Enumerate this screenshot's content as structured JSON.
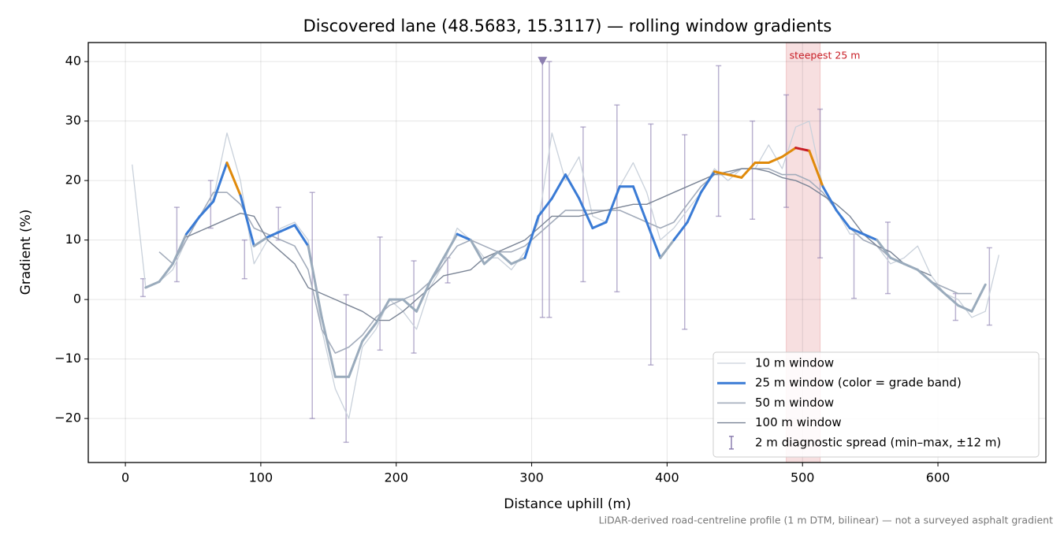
{
  "chart_data": {
    "type": "line",
    "title": "Discovered lane (48.5683, 15.3117) — rolling window gradients",
    "x_label": "Distance uphill (m)",
    "y_label": "Gradient (%)",
    "footnote": "LiDAR-derived road-centreline profile (1 m DTM, bilinear) — not a surveyed asphalt gradient",
    "xlim": [
      -27.4,
      679.7
    ],
    "ylim": [
      -27.4,
      43.2
    ],
    "xticks": [
      0,
      100,
      200,
      300,
      400,
      500,
      600
    ],
    "yticks": [
      {
        "value": -20,
        "label": "−20"
      },
      {
        "value": -10,
        "label": "−10"
      },
      0,
      10,
      20,
      30,
      40
    ],
    "grid": true,
    "legend": "lower right",
    "x": [
      5,
      15,
      25,
      35,
      45,
      55,
      65,
      75,
      85,
      95,
      105,
      115,
      125,
      135,
      145,
      155,
      165,
      175,
      185,
      195,
      205,
      215,
      225,
      235,
      245,
      255,
      265,
      275,
      285,
      295,
      305,
      315,
      325,
      335,
      345,
      355,
      365,
      375,
      385,
      395,
      405,
      415,
      425,
      435,
      445,
      455,
      465,
      475,
      485,
      495,
      505,
      515,
      525,
      535,
      545,
      555,
      565,
      575,
      585,
      595,
      605,
      615,
      625,
      635,
      645
    ],
    "series": [
      {
        "name": "10 m window",
        "color": "#c9d1db",
        "width": 1.3,
        "values": [
          22.7,
          2,
          3,
          5,
          10,
          14,
          17,
          28,
          20,
          6,
          10,
          12,
          13,
          10,
          -5,
          -15,
          -20,
          -8,
          -5,
          0,
          -2,
          -5,
          2,
          6,
          12,
          10,
          7,
          7,
          5,
          8,
          13,
          28,
          20,
          24,
          14,
          13,
          19,
          23,
          18,
          10,
          12,
          15,
          18,
          22,
          20,
          22,
          22,
          26,
          22,
          29,
          30,
          19,
          15,
          11,
          11,
          9,
          6,
          7,
          9,
          4,
          1,
          0,
          -3,
          -2,
          7.5
        ]
      },
      {
        "name": "25 m window (color = grade band)",
        "color": "#3a7bd5",
        "width": 3,
        "band_thresholds": [
          10,
          20,
          25
        ],
        "band_colors": [
          "#9aabbc",
          "#3a7bd5",
          "#e08a0b",
          "#c81d25"
        ],
        "values": [
          null,
          2,
          3,
          6,
          11,
          14,
          16.5,
          23,
          17.5,
          9,
          10.5,
          11.5,
          12.5,
          9,
          -3,
          -13,
          -13,
          -7,
          -4,
          0,
          0,
          -2,
          3,
          7,
          11,
          10,
          6,
          8,
          6,
          7,
          14,
          17,
          21,
          17,
          12,
          13,
          19,
          19,
          13,
          7,
          10,
          13,
          18,
          21.5,
          21,
          20.5,
          23,
          23,
          24,
          25.5,
          25,
          19,
          15,
          12,
          11,
          10,
          7,
          6,
          5,
          3,
          1,
          -1,
          -2,
          2.5,
          null
        ]
      },
      {
        "name": "50 m window",
        "color": "#a3acbb",
        "width": 1.6,
        "values": [
          null,
          null,
          8,
          6,
          10,
          14,
          18,
          18,
          16,
          12,
          11,
          10,
          9,
          5,
          -5,
          -9,
          -8,
          -6,
          -3,
          -1,
          0,
          1,
          3,
          6,
          9,
          10,
          9,
          8,
          8,
          9,
          11,
          13,
          15,
          15,
          15,
          15,
          15,
          14,
          13,
          12,
          13,
          16,
          19,
          21,
          21,
          22,
          22,
          22,
          21,
          21,
          20,
          18,
          15,
          12,
          10,
          9,
          7,
          6,
          5,
          3,
          2,
          1,
          1,
          null,
          null
        ]
      },
      {
        "name": "100 m window",
        "color": "#7b8596",
        "width": 1.4,
        "values": [
          null,
          null,
          null,
          null,
          10.5,
          11.5,
          12.5,
          13.5,
          14.5,
          14,
          10,
          8,
          6,
          2,
          1,
          0,
          -1,
          -2,
          -3.5,
          -3.5,
          -2,
          0,
          2,
          4,
          4.5,
          5,
          7,
          8,
          9,
          10,
          12,
          14,
          14,
          14,
          14.5,
          15,
          15.5,
          16,
          16,
          17,
          18,
          19,
          20,
          21,
          21.5,
          22,
          22,
          21.5,
          20.5,
          20,
          19,
          17.5,
          16,
          14,
          11,
          9,
          8,
          6,
          5,
          4,
          null,
          null,
          null,
          null,
          null
        ]
      }
    ],
    "errorbars": {
      "name": "2 m diagnostic spread (min–max, ±12 m)",
      "color": "#8c7fb0",
      "x": [
        13,
        38,
        63,
        88,
        113,
        138,
        163,
        188,
        213,
        238,
        308,
        313,
        338,
        363,
        388,
        413,
        438,
        463,
        488,
        513,
        538,
        563,
        613,
        638
      ],
      "low": [
        0.5,
        3,
        12,
        3.5,
        10,
        -20,
        -24,
        -8.5,
        -9,
        2.8,
        -3,
        -3,
        3,
        1.3,
        -11,
        -5,
        14,
        13.5,
        15.5,
        7,
        0.2,
        1,
        -3.5,
        -4.3
      ],
      "high": [
        3.5,
        15.5,
        20,
        10,
        15.5,
        18,
        0.8,
        10.5,
        6.5,
        7,
        40,
        40,
        29,
        32.7,
        29.5,
        27.7,
        39.3,
        30,
        34.4,
        32,
        11,
        13,
        1,
        8.7
      ]
    },
    "clip_markers": {
      "color": "#8c7fb0",
      "x": [
        308
      ],
      "y": [
        40
      ]
    },
    "highlight": {
      "label": "steepest 25 m",
      "color": "#c81d25",
      "span": [
        488,
        513
      ]
    }
  }
}
